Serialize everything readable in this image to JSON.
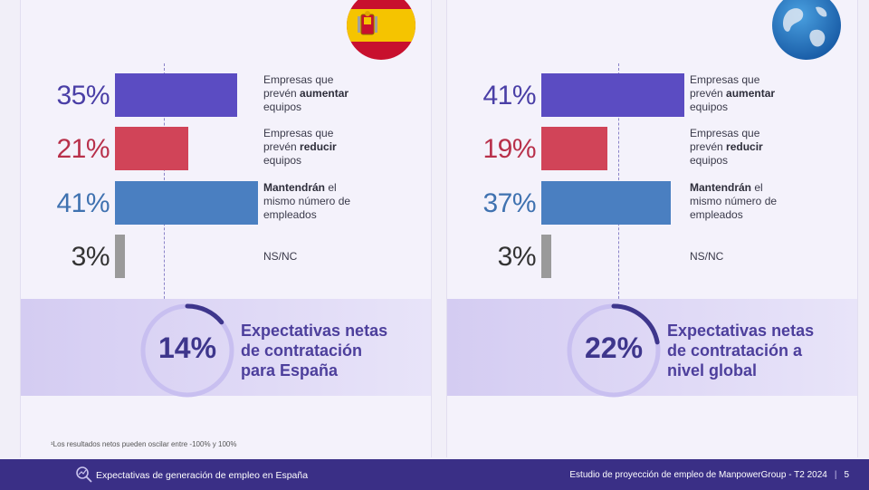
{
  "colors": {
    "increase": "#5b4cc2",
    "decrease": "#d14458",
    "maintain": "#4a7fc1",
    "nsnc": "#9a9a9a",
    "increase_text": "#4a3fa6",
    "decrease_text": "#b8304a",
    "maintain_text": "#3f72b0",
    "nsnc_text": "#333333",
    "gauge_track": "#c8bff0",
    "gauge_fill": "#3e368c",
    "footer_bg": "#3a2f86"
  },
  "chart_data": [
    {
      "type": "bar",
      "orientation": "horizontal",
      "xlim": [
        0,
        41
      ],
      "categories": [
        "Empresas que prevén aumentar equipos",
        "Empresas que prevén reducir equipos",
        "Mantendrán el mismo número de empleados",
        "NS/NC"
      ],
      "values": [
        35,
        21,
        41,
        3
      ],
      "value_labels": [
        "35%",
        "21%",
        "41%",
        "3%"
      ],
      "reference_value": 14,
      "net": {
        "value": "14%",
        "fraction": 0.14,
        "label_lines": [
          "Expectativas netas",
          "de contratación",
          "para España"
        ]
      },
      "flag_icon": "spain-flag-icon"
    },
    {
      "type": "bar",
      "orientation": "horizontal",
      "xlim": [
        0,
        41
      ],
      "categories": [
        "Empresas que prevén aumentar equipos",
        "Empresas que prevén reducir equipos",
        "Mantendrán el mismo número de empleados",
        "NS/NC"
      ],
      "values": [
        41,
        19,
        37,
        3
      ],
      "value_labels": [
        "41%",
        "19%",
        "37%",
        "3%"
      ],
      "reference_value": 22,
      "net": {
        "value": "22%",
        "fraction": 0.22,
        "label_lines": [
          "Expectativas netas",
          "de contratación a",
          "nivel global"
        ]
      },
      "flag_icon": "globe-icon"
    }
  ],
  "labels": {
    "increase": {
      "pre": "Empresas que",
      "mid": "prevén ",
      "bold": "aumentar",
      "post": "equipos"
    },
    "decrease": {
      "pre": "Empresas que",
      "mid": "prevén ",
      "bold": "reducir",
      "post": "equipos"
    },
    "maintain": {
      "bold": "Mantendrán",
      "mid": " el",
      "line2": "mismo número de",
      "post": "empleados"
    },
    "nsnc": "NS/NC"
  },
  "footnote": "¹Los resultados netos pueden oscilar entre -100% y 100%",
  "footer": {
    "left": "Expectativas de generación de empleo en España",
    "right": "Estudio de proyección de empleo de ManpowerGroup - T2 2024",
    "separator": "|",
    "page": "5"
  }
}
